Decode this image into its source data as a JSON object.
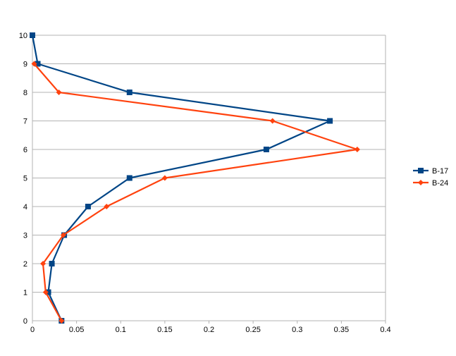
{
  "chart_data": {
    "type": "line",
    "title": "",
    "xlabel": "",
    "ylabel": "",
    "xlim": [
      0,
      0.4
    ],
    "ylim": [
      0,
      10
    ],
    "x_ticks": [
      "0",
      "0.05",
      "0.1",
      "0.15",
      "0.2",
      "0.25",
      "0.3",
      "0.35",
      "0.4"
    ],
    "y_ticks": [
      "0",
      "1",
      "2",
      "3",
      "4",
      "5",
      "6",
      "7",
      "8",
      "9",
      "10"
    ],
    "grid": "horizontal",
    "legend_position": "right",
    "series": [
      {
        "name": "B-17",
        "color": "#004586",
        "marker": "square",
        "points": [
          {
            "x": 0.0,
            "y": 10
          },
          {
            "x": 0.006,
            "y": 9
          },
          {
            "x": 0.11,
            "y": 8
          },
          {
            "x": 0.337,
            "y": 7
          },
          {
            "x": 0.265,
            "y": 6
          },
          {
            "x": 0.11,
            "y": 5
          },
          {
            "x": 0.063,
            "y": 4
          },
          {
            "x": 0.036,
            "y": 3
          },
          {
            "x": 0.022,
            "y": 2
          },
          {
            "x": 0.018,
            "y": 1
          },
          {
            "x": 0.033,
            "y": 0
          }
        ]
      },
      {
        "name": "B-24",
        "color": "#ff420e",
        "marker": "diamond",
        "points": [
          {
            "x": 0.002,
            "y": 9
          },
          {
            "x": 0.03,
            "y": 8
          },
          {
            "x": 0.272,
            "y": 7
          },
          {
            "x": 0.368,
            "y": 6
          },
          {
            "x": 0.15,
            "y": 5
          },
          {
            "x": 0.084,
            "y": 4
          },
          {
            "x": 0.035,
            "y": 3
          },
          {
            "x": 0.012,
            "y": 2
          },
          {
            "x": 0.015,
            "y": 1
          },
          {
            "x": 0.033,
            "y": 0
          }
        ]
      }
    ]
  }
}
